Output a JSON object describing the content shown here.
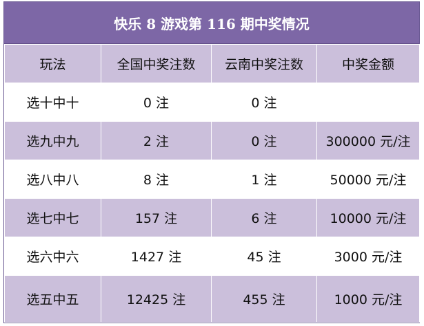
{
  "title": "快乐 8 游戏第 116 期中奖情况",
  "headers": [
    "玩法",
    "全国中奖注数",
    "云南中奖注数",
    "中奖金额"
  ],
  "rows": [
    {
      "play": "选十中十",
      "national": "0 注",
      "yunnan": "0 注",
      "amount": ""
    },
    {
      "play": "选九中九",
      "national": "2 注",
      "yunnan": "0 注",
      "amount": "300000 元/注"
    },
    {
      "play": "选八中八",
      "national": "8 注",
      "yunnan": "1 注",
      "amount": "50000 元/注"
    },
    {
      "play": "选七中七",
      "national": "157 注",
      "yunnan": "6 注",
      "amount": "10000 元/注"
    },
    {
      "play": "选六中六",
      "national": "1427 注",
      "yunnan": "45 注",
      "amount": "3000 元/注"
    },
    {
      "play": "选五中五",
      "national": "12425 注",
      "yunnan": "455 注",
      "amount": "1000 元/注"
    }
  ],
  "colors": {
    "title_bg": "#7d67a6",
    "row_tint": "#cbbfdb",
    "row_plain": "#ffffff"
  }
}
